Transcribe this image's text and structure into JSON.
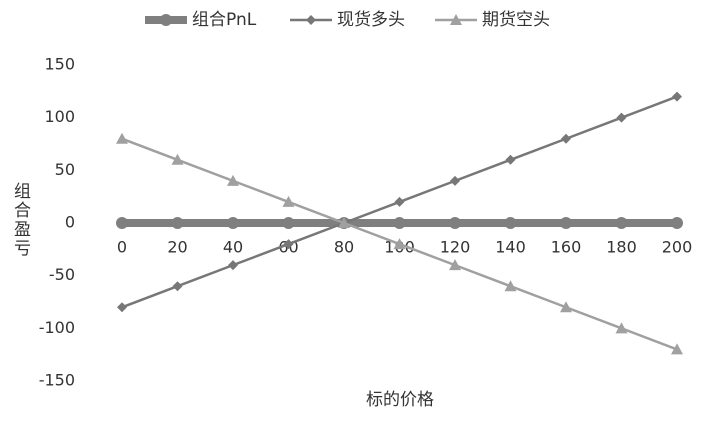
{
  "chart_data": {
    "type": "line",
    "x_label": "标的价格",
    "y_label": "组合盈亏",
    "x": [
      0,
      20,
      40,
      60,
      80,
      100,
      120,
      140,
      160,
      180,
      200
    ],
    "series": [
      {
        "name": "组合PnL",
        "color": "#7f7f7f",
        "marker": "circle",
        "line_width": 8,
        "values": [
          0,
          0,
          0,
          0,
          0,
          0,
          0,
          0,
          0,
          0,
          0
        ]
      },
      {
        "name": "现货多头",
        "color": "#777777",
        "marker": "diamond",
        "line_width": 2.5,
        "values": [
          -80,
          -60,
          -40,
          -20,
          0,
          20,
          40,
          60,
          80,
          100,
          120
        ]
      },
      {
        "name": "期货空头",
        "color": "#a0a0a0",
        "marker": "triangle",
        "line_width": 2.5,
        "values": [
          80,
          60,
          40,
          20,
          0,
          -20,
          -40,
          -60,
          -80,
          -100,
          -120
        ]
      }
    ],
    "xlim": [
      0,
      200
    ],
    "xticks": [
      0,
      20,
      40,
      60,
      80,
      100,
      120,
      140,
      160,
      180,
      200
    ],
    "ylim": [
      -150,
      150
    ],
    "yticks": [
      -150,
      -100,
      -50,
      0,
      50,
      100,
      150
    ],
    "grid": false,
    "legend": "top"
  }
}
